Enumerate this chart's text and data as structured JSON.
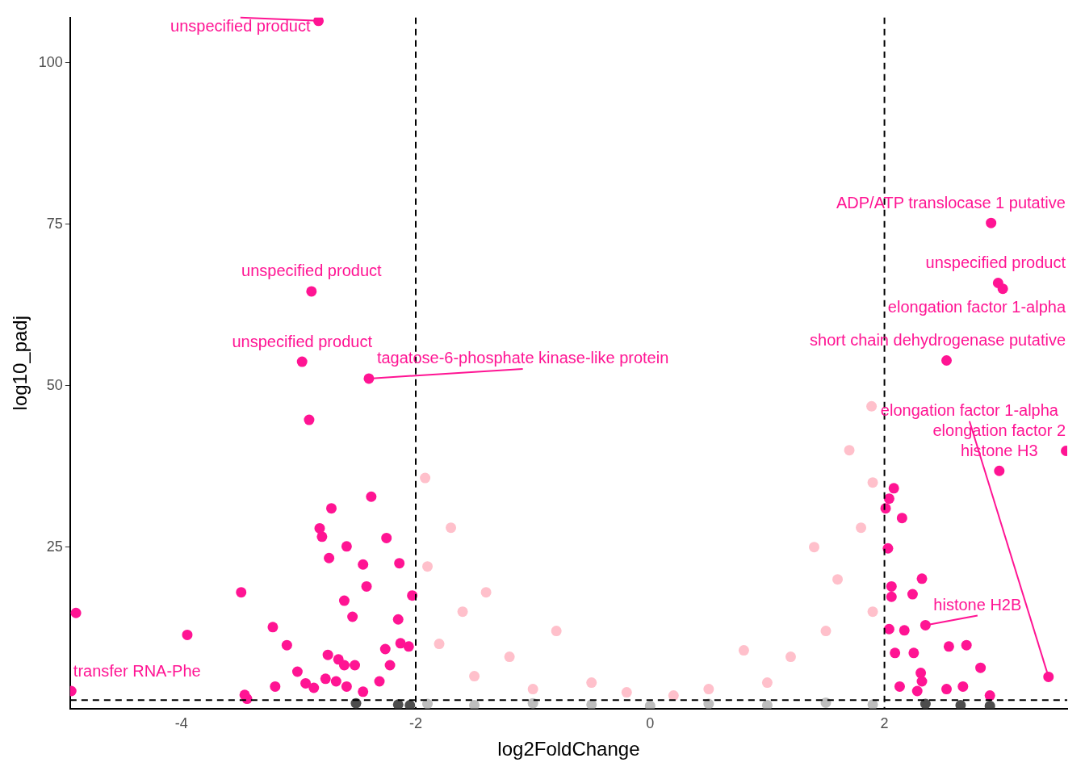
{
  "chart_data": {
    "type": "scatter",
    "xlabel": "log2FoldChange",
    "ylabel": "log10_padj",
    "xlim": [
      -4.95,
      3.56
    ],
    "ylim": [
      0,
      107
    ],
    "xticks": [
      -4,
      -2,
      0,
      2
    ],
    "yticks": [
      25,
      50,
      75,
      100
    ],
    "grid": false,
    "marker": "circle",
    "series": [
      {
        "color": "#bebebe",
        "x": [
          -1.9,
          -1.5,
          -1,
          -0.5,
          0,
          0.5,
          1,
          1.5,
          1.9
        ],
        "values": [
          0.7,
          0.5,
          0.8,
          0.6,
          0.4,
          0.7,
          0.5,
          0.9,
          0.6
        ]
      },
      {
        "color": "#ffc0cb",
        "x": [
          -1.8,
          -1.5,
          -1.2,
          -1,
          -0.8,
          -0.5,
          -1.9,
          -1.6,
          1.9,
          1.8,
          1.6,
          1.5,
          1.2,
          1,
          0.8,
          0.5,
          1.9,
          1.7,
          -1.7,
          0.2,
          -0.2,
          1.89,
          -1.92,
          -1.4,
          1.4
        ],
        "values": [
          10,
          5,
          8,
          3,
          12,
          4,
          22,
          15,
          35,
          28,
          20,
          12,
          8,
          4,
          9,
          3,
          15,
          40,
          28,
          2,
          2.5,
          46.8,
          35.7,
          18,
          25
        ]
      },
      {
        "color": "#4d4d4d",
        "x": [
          -2.51,
          -2.15,
          -2.05,
          2.35,
          2.65,
          2.9
        ],
        "values": [
          0.8,
          0.6,
          0.5,
          0.7,
          0.5,
          0.4
        ]
      },
      {
        "color": "#ff1493",
        "x": [
          -2.83,
          -2.89,
          -2.97,
          -2.4,
          -2.91,
          -3.49,
          -4.9,
          -4.94,
          -3.44,
          -3.95,
          -3.22,
          -3.1,
          -3.01,
          -3.2,
          -3.46,
          -2.94,
          -2.87,
          -2.77,
          -2.68,
          -2.75,
          -2.66,
          -2.61,
          -2.52,
          -2.59,
          -2.45,
          -2.31,
          -2.22,
          -2.26,
          -2.15,
          -2.54,
          -2.61,
          -2.42,
          -2.45,
          -2.74,
          -2.59,
          -2.8,
          -2.82,
          -2.72,
          -2.38,
          -2.25,
          -2.14,
          -2.03,
          -2.06,
          -2.13,
          2.91,
          2.97,
          3.01,
          2.53,
          2.08,
          2.04,
          2.01,
          2.15,
          2.03,
          2.32,
          2.06,
          2.24,
          2.06,
          2.35,
          2.17,
          2.04,
          2.55,
          2.7,
          2.09,
          2.25,
          2.82,
          2.31,
          3.4,
          2.32,
          2.67,
          2.13,
          2.53,
          2.28,
          2.9,
          2.98,
          3.55
        ],
        "values": [
          106.5,
          64.6,
          53.7,
          51.1,
          44.7,
          18,
          14.8,
          2.7,
          1.5,
          11.4,
          12.6,
          9.8,
          5.7,
          3.4,
          2.1,
          3.9,
          3.2,
          4.6,
          4.2,
          8.3,
          7.6,
          6.7,
          6.7,
          3.4,
          2.6,
          4.2,
          6.7,
          9.2,
          13.8,
          14.2,
          16.7,
          18.9,
          22.3,
          23.3,
          25.1,
          26.6,
          27.9,
          31,
          32.8,
          26.4,
          22.5,
          17.5,
          9.6,
          10.1,
          75.2,
          65.9,
          65,
          53.9,
          34.1,
          32.5,
          31,
          29.5,
          24.8,
          20.1,
          18.9,
          17.7,
          17.3,
          12.9,
          12.1,
          12.3,
          9.6,
          9.8,
          8.6,
          8.6,
          6.3,
          5.5,
          4.9,
          4.2,
          3.4,
          3.4,
          3,
          2.7,
          2,
          36.8,
          39.9
        ]
      }
    ],
    "ref_lines": [
      {
        "axis": "x",
        "value": -2,
        "color": "#000000",
        "line_style": "dashed"
      },
      {
        "axis": "x",
        "value": 2,
        "color": "#000000",
        "line_style": "dashed"
      },
      {
        "axis": "y",
        "value": 1.3,
        "color": "#000000",
        "line_style": "dashed"
      }
    ],
    "annotations": [
      {
        "text": "unspecified product",
        "x": -2.83,
        "y": 106.5
      },
      {
        "text": "ADP/ATP translocase 1 putative",
        "x": 2.91,
        "y": 75.2
      },
      {
        "text": "unspecified product",
        "x": 2.97,
        "y": 65.9
      },
      {
        "text": "elongation factor 1-alpha",
        "x": 3.01,
        "y": 65
      },
      {
        "text": "unspecified product",
        "x": -2.89,
        "y": 64.6
      },
      {
        "text": "unspecified product",
        "x": -2.97,
        "y": 53.7
      },
      {
        "text": "short chain dehydrogenase putative",
        "x": 2.53,
        "y": 53.9
      },
      {
        "text": "tagatose-6-phosphate kinase-like protein",
        "x": -2.4,
        "y": 51.1
      },
      {
        "text": "histone H3",
        "x": 2.98,
        "y": 36.8
      },
      {
        "text": "elongation factor 2",
        "x": 3.55,
        "y": 39.9
      },
      {
        "text": "transfer RNA-Phe",
        "x": -4.94,
        "y": 2.7
      },
      {
        "text": "histone H2B",
        "x": 2.35,
        "y": 12.9
      },
      {
        "text": "elongation factor 1-alpha",
        "x": 3.4,
        "y": 4.9
      }
    ]
  }
}
